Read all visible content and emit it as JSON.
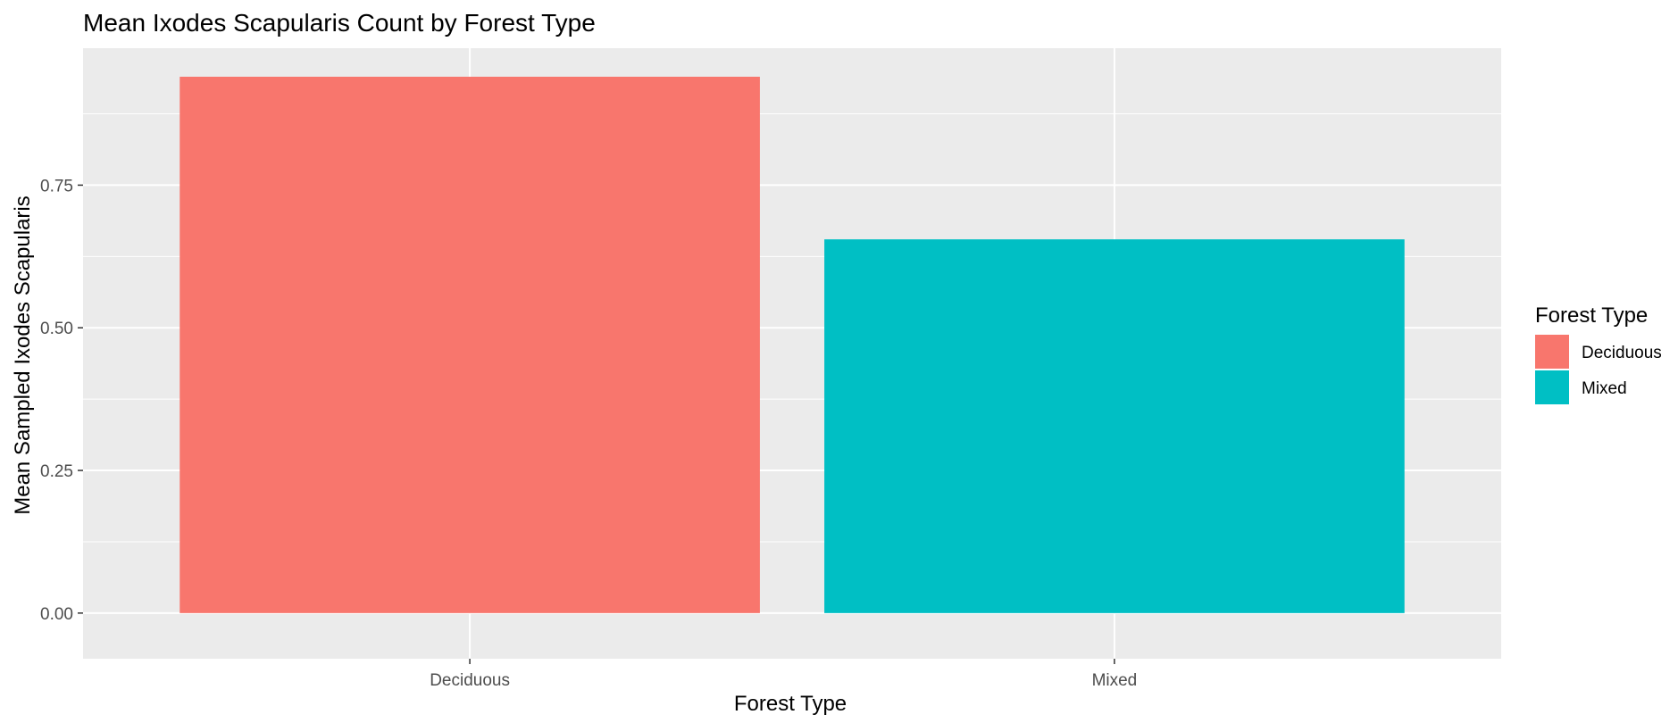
{
  "chart_data": {
    "type": "bar",
    "title": "Mean Ixodes Scapularis Count by Forest Type",
    "xlabel": "Forest Type",
    "ylabel": "Mean Sampled Ixodes Scapularis",
    "categories": [
      "Deciduous",
      "Mixed"
    ],
    "values": [
      0.94,
      0.655
    ],
    "colors": [
      "#F8766D",
      "#00BFC4"
    ],
    "ylim": [
      -0.08,
      0.99
    ],
    "yticks": [
      0.0,
      0.25,
      0.5,
      0.75
    ],
    "ytick_labels": [
      "0.00",
      "0.25",
      "0.50",
      "0.75"
    ],
    "grid": true,
    "panel_background": "#EBEBEB",
    "legend": {
      "title": "Forest Type",
      "placement": "right",
      "entries": [
        "Deciduous",
        "Mixed"
      ]
    }
  }
}
